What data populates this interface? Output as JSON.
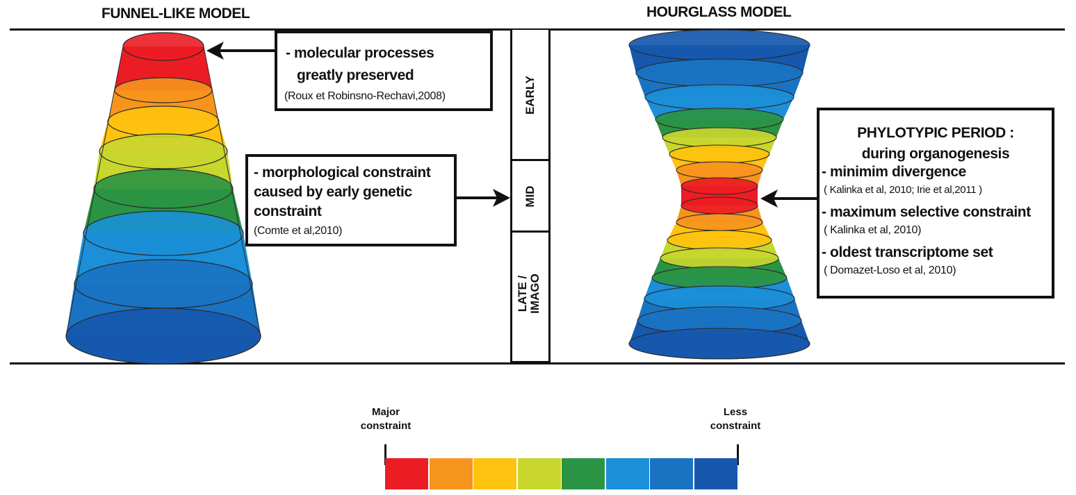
{
  "titles": {
    "funnel": "FUNNEL-LIKE MODEL",
    "hourglass": "HOURGLASS MODEL"
  },
  "funnel_notes": {
    "top": {
      "line1": "- molecular processes",
      "line2": "greatly preserved",
      "cite": "(Roux et Robinsno-Rechavi,2008)"
    },
    "mid": {
      "line1": "- morphological constraint",
      "line2": "caused by early genetic",
      "line3": "constraint",
      "cite": "(Comte et al,2010)"
    }
  },
  "stages": {
    "early": "EARLY",
    "mid": "MID",
    "late_line1": "LATE /",
    "late_line2": "IMAGO"
  },
  "hourglass_note": {
    "heading1": "PHYLOTYPIC PERIOD :",
    "heading2": "during organogenesis",
    "item1": "- minimim divergence",
    "cite1": "( Kalinka et al, 2010; Irie et al,2011 )",
    "item2": "- maximum selective constraint",
    "cite2": "( Kalinka et al, 2010)",
    "item3": "- oldest transcriptome set",
    "cite3": "( Domazet-Loso et al, 2010)"
  },
  "legend": {
    "major_line1": "Major",
    "major_line2": "constraint",
    "less_line1": "Less",
    "less_line2": "constraint"
  },
  "constraint_scale_colors": [
    "#ec1c24",
    "#f7941d",
    "#ffc20e",
    "#c8d62e",
    "#2a9444",
    "#1b8fd8",
    "#1a73c2",
    "#1658ad"
  ]
}
